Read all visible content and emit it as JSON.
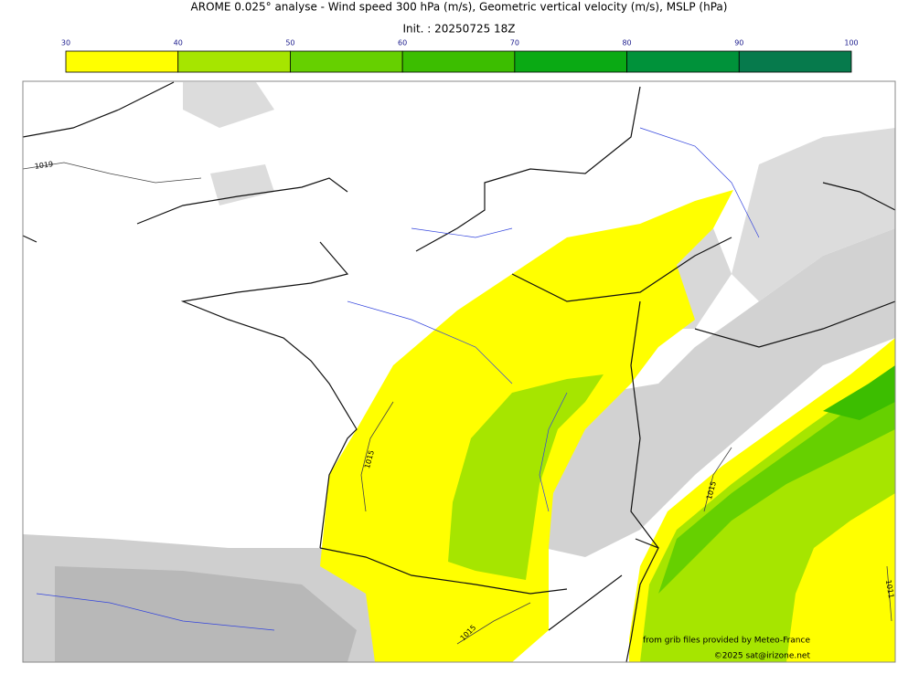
{
  "header": {
    "title": "AROME 0.025° analyse - Wind speed 300 hPa (m/s), Geometric vertical velocity (m/s), MSLP (hPa)",
    "init": "Init. : 20250725 18Z"
  },
  "colorbar": {
    "ticks": [
      30,
      40,
      50,
      60,
      70,
      80,
      90,
      100
    ],
    "colors": [
      "#ffff00",
      "#a6e500",
      "#66d000",
      "#3cbe00",
      "#0aaa14",
      "#00923a",
      "#067a4c"
    ]
  },
  "map": {
    "isobar_labels": [
      "1019",
      "1015",
      "1015",
      "1015",
      "1011"
    ]
  },
  "footer": {
    "source": "from grib files provided by Meteo-France",
    "copyright": "©2025 sat@irizone.net"
  }
}
